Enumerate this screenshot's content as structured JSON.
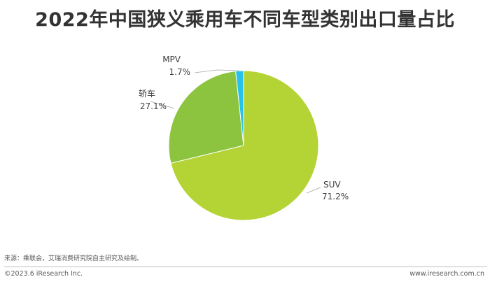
{
  "chart_data": {
    "type": "pie",
    "title": "2022年中国狭义乘用车不同车型类别出口量占比",
    "categories": [
      "SUV",
      "轿车",
      "MPV"
    ],
    "values": [
      71.2,
      27.1,
      1.7
    ],
    "value_labels": [
      "71.2%",
      "27.1%",
      "1.7%"
    ],
    "colors": [
      "#b4d334",
      "#8cc43f",
      "#28c2e8"
    ],
    "unit": "%"
  },
  "source": "来源：乘联会，艾瑞消费研究院自主研究及绘制。",
  "footer": {
    "copyright": "©2023.6 iResearch Inc.",
    "website": "www.iresearch.com.cn"
  }
}
